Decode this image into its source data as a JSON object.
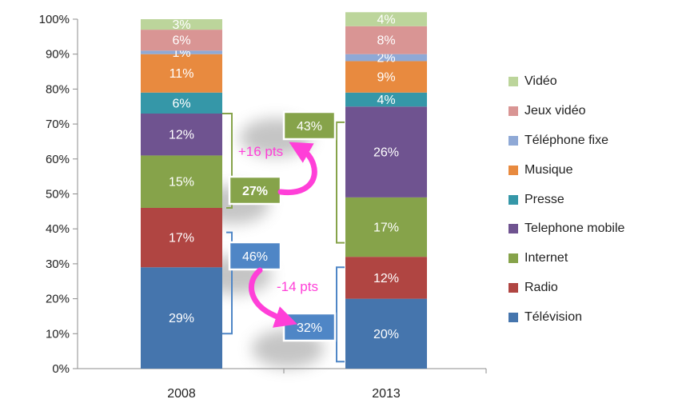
{
  "chart_data": {
    "type": "bar",
    "stacked": true,
    "categories": [
      "2008",
      "2013"
    ],
    "ylim": [
      0,
      100
    ],
    "yticks": [
      "0%",
      "10%",
      "20%",
      "30%",
      "40%",
      "50%",
      "60%",
      "70%",
      "80%",
      "90%",
      "100%"
    ],
    "legend_position": "right",
    "series": [
      {
        "name": "Télévision",
        "values": [
          29,
          20
        ],
        "labels": [
          "29%",
          "20%"
        ],
        "color": "#4575ad"
      },
      {
        "name": "Radio",
        "values": [
          17,
          12
        ],
        "labels": [
          "17%",
          "12%"
        ],
        "color": "#b04542"
      },
      {
        "name": "Internet",
        "values": [
          15,
          17
        ],
        "labels": [
          "15%",
          "17%"
        ],
        "color": "#86a34a"
      },
      {
        "name": "Telephone mobile",
        "values": [
          12,
          26
        ],
        "labels": [
          "12%",
          "26%"
        ],
        "color": "#6f5390"
      },
      {
        "name": "Presse",
        "values": [
          6,
          4
        ],
        "labels": [
          "6%",
          "4%"
        ],
        "color": "#3597a8"
      },
      {
        "name": "Musique",
        "values": [
          11,
          9
        ],
        "labels": [
          "11%",
          "9%"
        ],
        "color": "#e88a3f"
      },
      {
        "name": "Téléphone fixe",
        "values": [
          1,
          2
        ],
        "labels": [
          "1%",
          "2%"
        ],
        "color": "#8fa9d6"
      },
      {
        "name": "Jeux vidéo",
        "values": [
          6,
          8
        ],
        "labels": [
          "6%",
          "8%"
        ],
        "color": "#d99594"
      },
      {
        "name": "Vidéo",
        "values": [
          3,
          4
        ],
        "labels": [
          "3%",
          "4%"
        ],
        "color": "#bcd59b"
      }
    ],
    "annotations": {
      "internet_mobile": {
        "values": [
          "27%",
          "43%"
        ],
        "change": "+16 pts"
      },
      "tv_radio": {
        "values": [
          "46%",
          "32%"
        ],
        "change": "-14 pts"
      }
    }
  },
  "colors": {
    "arrow": "#ff3fd8",
    "box_green": "#86a34a",
    "box_blue": "#4f86c6"
  }
}
